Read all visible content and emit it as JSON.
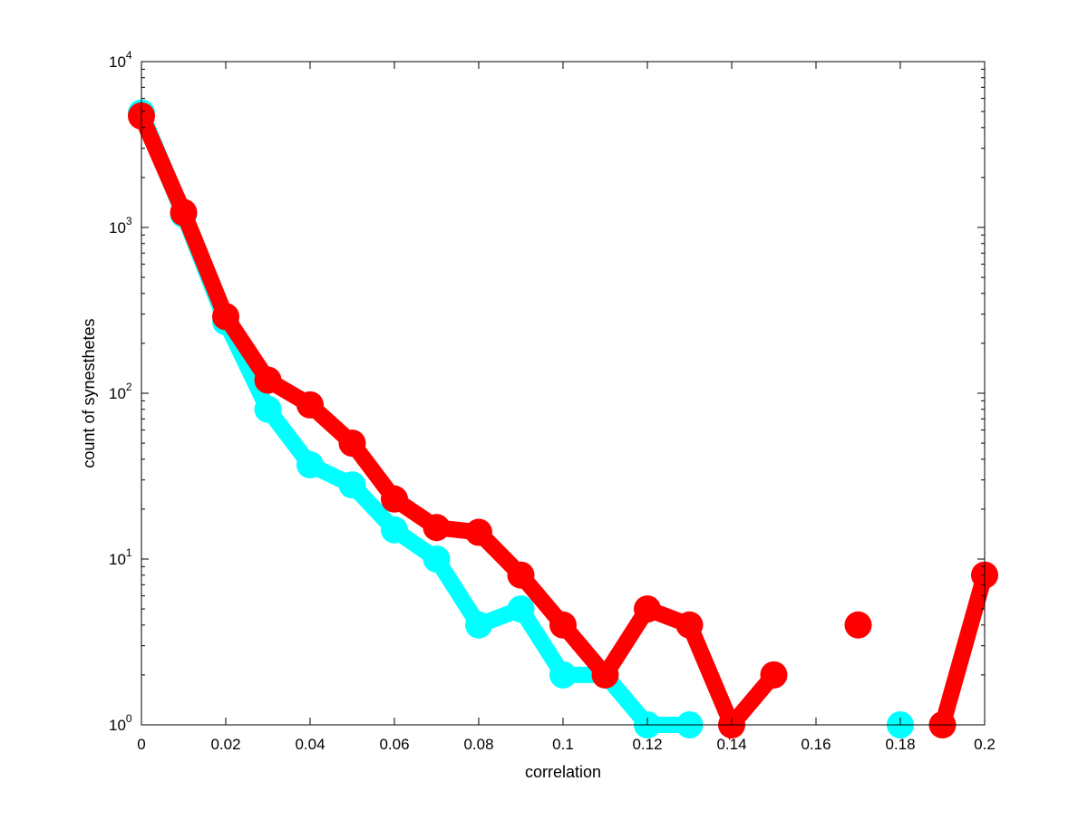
{
  "chart_data": {
    "type": "line",
    "title": "",
    "xlabel": "correlation",
    "ylabel": "count of synesthetes",
    "xlim": [
      0,
      0.2
    ],
    "ylim": [
      1,
      10000
    ],
    "yscale": "log",
    "grid": false,
    "legend": "none",
    "x_ticks": [
      0,
      0.02,
      0.04,
      0.06,
      0.08,
      0.1,
      0.12,
      0.14,
      0.16,
      0.18,
      0.2
    ],
    "x_tick_labels": [
      "0",
      "0.02",
      "0.04",
      "0.06",
      "0.08",
      "0.1",
      "0.12",
      "0.14",
      "0.16",
      "0.18",
      "0.2"
    ],
    "y_ticks": [
      {
        "value": 1,
        "base": "10",
        "exp": "0"
      },
      {
        "value": 10,
        "base": "10",
        "exp": "1"
      },
      {
        "value": 100,
        "base": "10",
        "exp": "2"
      },
      {
        "value": 1000,
        "base": "10",
        "exp": "3"
      },
      {
        "value": 10000,
        "base": "10",
        "exp": "4"
      }
    ],
    "series": [
      {
        "color": "#00ffff",
        "points": [
          [
            0,
            4900
          ],
          [
            0.01,
            1200
          ],
          [
            0.02,
            270
          ],
          [
            0.03,
            80
          ],
          [
            0.04,
            37
          ],
          [
            0.05,
            28
          ],
          [
            0.06,
            15
          ],
          [
            0.07,
            10
          ],
          [
            0.08,
            4
          ],
          [
            0.09,
            5
          ],
          [
            0.1,
            2
          ],
          [
            0.11,
            2
          ],
          [
            0.12,
            1
          ],
          [
            0.13,
            1
          ],
          [
            0.14,
            null
          ],
          [
            0.15,
            null
          ],
          [
            0.16,
            null
          ],
          [
            0.17,
            null
          ],
          [
            0.18,
            1
          ],
          [
            0.19,
            null
          ],
          [
            0.2,
            null
          ]
        ]
      },
      {
        "color": "#ff0000",
        "points": [
          [
            0,
            4700
          ],
          [
            0.01,
            1230
          ],
          [
            0.02,
            290
          ],
          [
            0.03,
            120
          ],
          [
            0.04,
            85
          ],
          [
            0.05,
            50
          ],
          [
            0.06,
            23
          ],
          [
            0.07,
            15.5
          ],
          [
            0.08,
            14.5
          ],
          [
            0.09,
            8
          ],
          [
            0.1,
            4
          ],
          [
            0.11,
            2
          ],
          [
            0.12,
            5
          ],
          [
            0.13,
            4
          ],
          [
            0.14,
            1
          ],
          [
            0.15,
            2
          ],
          [
            0.16,
            null
          ],
          [
            0.17,
            4
          ],
          [
            0.18,
            null
          ],
          [
            0.19,
            1
          ],
          [
            0.2,
            8
          ]
        ]
      }
    ]
  }
}
